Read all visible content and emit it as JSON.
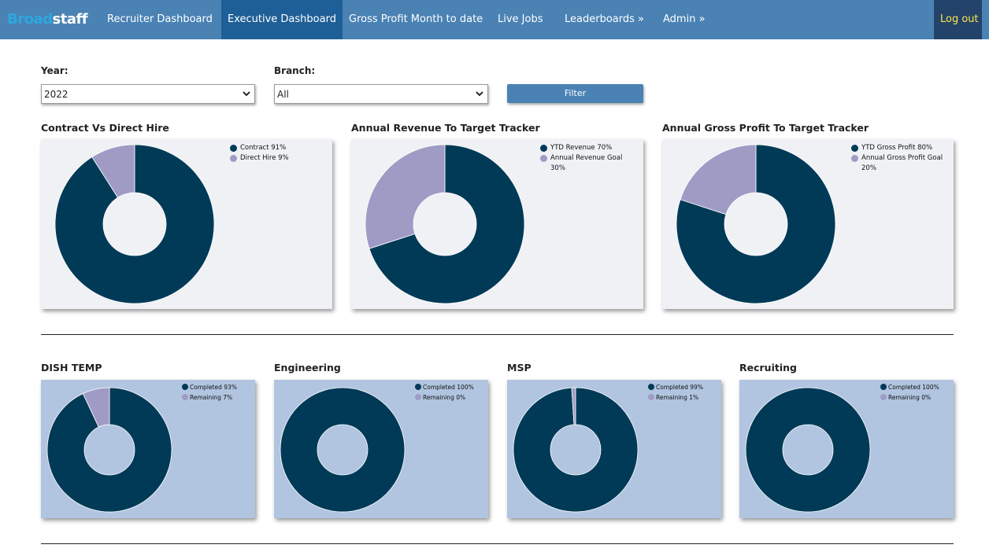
{
  "app": {
    "logo_part1": "Broad",
    "logo_part2": "staff"
  },
  "nav": {
    "items": [
      {
        "label": "Recruiter Dashboard"
      },
      {
        "label": "Executive Dashboard"
      },
      {
        "label": "Gross Profit Month to date"
      },
      {
        "label": "Live Jobs"
      },
      {
        "label": "Leaderboards »"
      },
      {
        "label": "Admin »"
      }
    ],
    "logout": "Log out"
  },
  "filters": {
    "year_label": "Year:",
    "year_value": "2022",
    "branch_label": "Branch:",
    "branch_value": "All",
    "filter_button": "Filter"
  },
  "colors": {
    "primary": "#003a57",
    "secondary": "#9f9bc5",
    "nav": "#4a82b4",
    "nav_active": "#1f5f97",
    "logout_bg": "#23436a",
    "logout_text": "#ffe34a"
  },
  "top_charts": {
    "contract": {
      "title": "Contract Vs Direct Hire",
      "legend": [
        "Contract 91%",
        "Direct Hire 9%"
      ]
    },
    "revenue": {
      "title": "Annual Revenue To Target Tracker",
      "legend": [
        "YTD Revenue 70%",
        "Annual Revenue Goal",
        "30%"
      ]
    },
    "gross": {
      "title": "Annual Gross Profit To Target Tracker",
      "legend": [
        "YTD Gross Profit 80%",
        "Annual Gross Profit Goal",
        "20%"
      ]
    }
  },
  "bottom_charts": {
    "dish": {
      "title": "DISH TEMP",
      "legend": [
        "Completed 93%",
        "Remaining 7%"
      ]
    },
    "eng": {
      "title": "Engineering",
      "legend": [
        "Completed 100%",
        "Remaining 0%"
      ]
    },
    "msp": {
      "title": "MSP",
      "legend": [
        "Completed 99%",
        "Remaining 1%"
      ]
    },
    "rec": {
      "title": "Recruiting",
      "legend": [
        "Completed 100%",
        "Remaining 0%"
      ]
    }
  },
  "chart_data": [
    {
      "type": "pie",
      "title": "Contract Vs Direct Hire",
      "categories": [
        "Contract",
        "Direct Hire"
      ],
      "values": [
        91,
        9
      ]
    },
    {
      "type": "pie",
      "title": "Annual Revenue To Target Tracker",
      "categories": [
        "YTD Revenue",
        "Annual Revenue Goal"
      ],
      "values": [
        70,
        30
      ]
    },
    {
      "type": "pie",
      "title": "Annual Gross Profit To Target Tracker",
      "categories": [
        "YTD Gross Profit",
        "Annual Gross Profit Goal"
      ],
      "values": [
        80,
        20
      ]
    },
    {
      "type": "pie",
      "title": "DISH TEMP",
      "categories": [
        "Completed",
        "Remaining"
      ],
      "values": [
        93,
        7
      ]
    },
    {
      "type": "pie",
      "title": "Engineering",
      "categories": [
        "Completed",
        "Remaining"
      ],
      "values": [
        100,
        0
      ]
    },
    {
      "type": "pie",
      "title": "MSP",
      "categories": [
        "Completed",
        "Remaining"
      ],
      "values": [
        99,
        1
      ]
    },
    {
      "type": "pie",
      "title": "Recruiting",
      "categories": [
        "Completed",
        "Remaining"
      ],
      "values": [
        100,
        0
      ]
    }
  ]
}
